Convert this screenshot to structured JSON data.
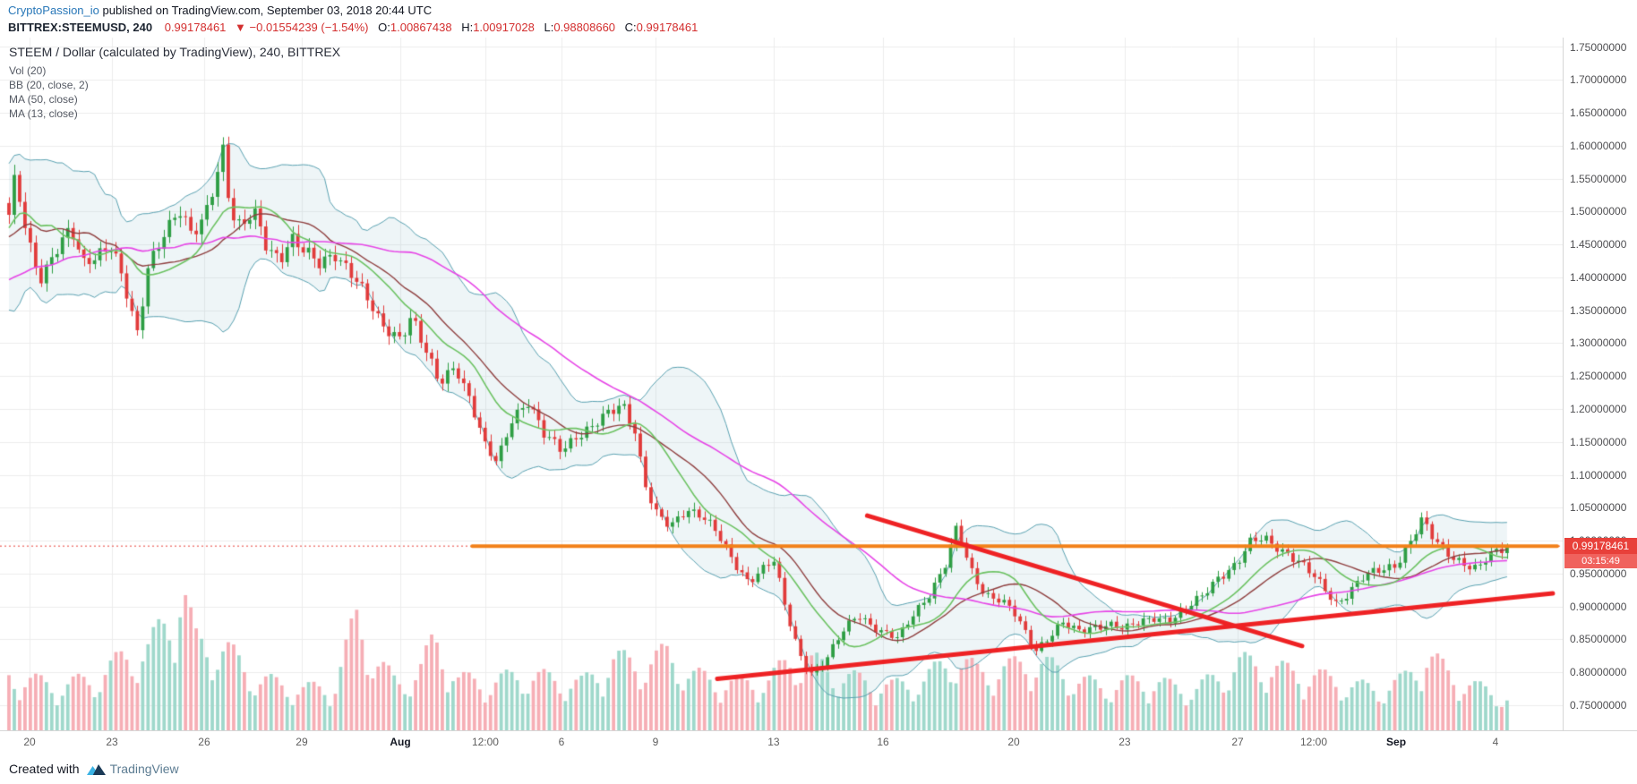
{
  "header": {
    "author": "CryptoPassion_io",
    "published": " published on TradingView.com, September 03, 2018 20:44 UTC"
  },
  "symbol_bar": {
    "symbol": "BITTREX:STEEMUSD, 240",
    "last": "0.99178461",
    "change": "▼ −0.01554239 (−1.54%)",
    "o_label": "O:",
    "o": "1.00867438",
    "h_label": "H:",
    "h": "1.00917028",
    "l_label": "L:",
    "l": "0.98808660",
    "c_label": "C:",
    "c": "0.99178461"
  },
  "legend": {
    "title": "STEEM / Dollar (calculated by TradingView), 240, BITTREX",
    "vol": "Vol (20)",
    "bb": "BB (20, close, 2)",
    "ma50": "MA (50, close)",
    "ma13": "MA (13, close)"
  },
  "price_axis": {
    "ticks": [
      "1.75000000",
      "1.70000000",
      "1.65000000",
      "1.60000000",
      "1.55000000",
      "1.50000000",
      "1.45000000",
      "1.40000000",
      "1.35000000",
      "1.30000000",
      "1.25000000",
      "1.20000000",
      "1.15000000",
      "1.10000000",
      "1.05000000",
      "1.00000000",
      "0.95000000",
      "0.90000000",
      "0.85000000",
      "0.80000000",
      "0.75000000"
    ],
    "last_price_label": "0.99178461",
    "countdown": "03:15:49"
  },
  "time_axis": {
    "ticks": [
      {
        "label": "20",
        "f": 0.0133,
        "month": false
      },
      {
        "label": "23",
        "f": 0.0665,
        "month": false
      },
      {
        "label": "26",
        "f": 0.126,
        "month": false
      },
      {
        "label": "29",
        "f": 0.189,
        "month": false
      },
      {
        "label": "Aug",
        "f": 0.2526,
        "month": true
      },
      {
        "label": "12:00",
        "f": 0.3075,
        "month": false
      },
      {
        "label": "6",
        "f": 0.3566,
        "month": false
      },
      {
        "label": "9",
        "f": 0.4173,
        "month": false
      },
      {
        "label": "13",
        "f": 0.4936,
        "month": false
      },
      {
        "label": "16",
        "f": 0.5642,
        "month": false
      },
      {
        "label": "20",
        "f": 0.6486,
        "month": false
      },
      {
        "label": "23",
        "f": 0.7202,
        "month": false
      },
      {
        "label": "27",
        "f": 0.7931,
        "month": false
      },
      {
        "label": "12:00",
        "f": 0.8422,
        "month": false
      },
      {
        "label": "Sep",
        "f": 0.8954,
        "month": true
      },
      {
        "label": "4",
        "f": 0.9595,
        "month": false
      }
    ]
  },
  "footer": {
    "created_with": "Created with",
    "brand": "TradingView"
  },
  "chart_data": {
    "type": "candlestick",
    "title": "STEEM / Dollar (calculated by TradingView), 240, BITTREX",
    "symbol": "STEEM/USD",
    "exchange": "BITTREX",
    "interval_minutes": 240,
    "price_range": [
      0.75,
      1.75
    ],
    "grid_step": 0.05,
    "legend_position": "top-left",
    "grid": true,
    "indicators": {
      "volume_ma": 20,
      "bollinger": {
        "period": 20,
        "source": "close",
        "stdev": 2
      },
      "ma": [
        {
          "period": 50,
          "source": "close"
        },
        {
          "period": 13,
          "source": "close"
        }
      ]
    },
    "last_candle": {
      "open": 1.00867438,
      "high": 1.00917028,
      "low": 0.9880866,
      "close": 0.99178461
    },
    "candle_count": 281,
    "last_frac": 0.967,
    "close_path_estimate": [
      [
        0.0,
        1.49
      ],
      [
        0.004,
        1.55
      ],
      [
        0.012,
        1.46
      ],
      [
        0.02,
        1.4
      ],
      [
        0.03,
        1.44
      ],
      [
        0.04,
        1.47
      ],
      [
        0.048,
        1.42
      ],
      [
        0.058,
        1.44
      ],
      [
        0.0665,
        1.45
      ],
      [
        0.075,
        1.38
      ],
      [
        0.083,
        1.31
      ],
      [
        0.09,
        1.42
      ],
      [
        0.1,
        1.47
      ],
      [
        0.11,
        1.5
      ],
      [
        0.118,
        1.46
      ],
      [
        0.126,
        1.49
      ],
      [
        0.133,
        1.55
      ],
      [
        0.138,
        1.6
      ],
      [
        0.143,
        1.5
      ],
      [
        0.15,
        1.47
      ],
      [
        0.158,
        1.5
      ],
      [
        0.166,
        1.45
      ],
      [
        0.175,
        1.43
      ],
      [
        0.182,
        1.46
      ],
      [
        0.189,
        1.44
      ],
      [
        0.2,
        1.42
      ],
      [
        0.21,
        1.44
      ],
      [
        0.22,
        1.41
      ],
      [
        0.23,
        1.37
      ],
      [
        0.24,
        1.33
      ],
      [
        0.2526,
        1.31
      ],
      [
        0.26,
        1.34
      ],
      [
        0.268,
        1.29
      ],
      [
        0.278,
        1.24
      ],
      [
        0.288,
        1.27
      ],
      [
        0.298,
        1.21
      ],
      [
        0.3075,
        1.14
      ],
      [
        0.315,
        1.12
      ],
      [
        0.325,
        1.19
      ],
      [
        0.335,
        1.21
      ],
      [
        0.345,
        1.16
      ],
      [
        0.3566,
        1.14
      ],
      [
        0.366,
        1.16
      ],
      [
        0.376,
        1.17
      ],
      [
        0.386,
        1.19
      ],
      [
        0.396,
        1.21
      ],
      [
        0.404,
        1.17
      ],
      [
        0.41,
        1.09
      ],
      [
        0.4173,
        1.04
      ],
      [
        0.427,
        1.02
      ],
      [
        0.437,
        1.05
      ],
      [
        0.447,
        1.04
      ],
      [
        0.457,
        1.01
      ],
      [
        0.467,
        0.97
      ],
      [
        0.477,
        0.94
      ],
      [
        0.4936,
        0.97
      ],
      [
        0.502,
        0.89
      ],
      [
        0.51,
        0.83
      ],
      [
        0.518,
        0.8
      ],
      [
        0.528,
        0.82
      ],
      [
        0.538,
        0.86
      ],
      [
        0.548,
        0.89
      ],
      [
        0.558,
        0.87
      ],
      [
        0.5642,
        0.86
      ],
      [
        0.574,
        0.85
      ],
      [
        0.584,
        0.89
      ],
      [
        0.594,
        0.92
      ],
      [
        0.604,
        0.96
      ],
      [
        0.612,
        1.02
      ],
      [
        0.62,
        0.96
      ],
      [
        0.63,
        0.92
      ],
      [
        0.64,
        0.91
      ],
      [
        0.6486,
        0.89
      ],
      [
        0.656,
        0.86
      ],
      [
        0.663,
        0.835
      ],
      [
        0.671,
        0.855
      ],
      [
        0.68,
        0.875
      ],
      [
        0.69,
        0.86
      ],
      [
        0.7,
        0.87
      ],
      [
        0.71,
        0.875
      ],
      [
        0.7202,
        0.865
      ],
      [
        0.73,
        0.875
      ],
      [
        0.74,
        0.885
      ],
      [
        0.75,
        0.88
      ],
      [
        0.76,
        0.895
      ],
      [
        0.77,
        0.915
      ],
      [
        0.78,
        0.945
      ],
      [
        0.7931,
        0.965
      ],
      [
        0.801,
        0.995
      ],
      [
        0.81,
        1.005
      ],
      [
        0.82,
        0.99
      ],
      [
        0.831,
        0.97
      ],
      [
        0.8422,
        0.945
      ],
      [
        0.85,
        0.925
      ],
      [
        0.857,
        0.905
      ],
      [
        0.866,
        0.925
      ],
      [
        0.875,
        0.945
      ],
      [
        0.885,
        0.955
      ],
      [
        0.8954,
        0.965
      ],
      [
        0.905,
        1.0
      ],
      [
        0.912,
        1.03
      ],
      [
        0.92,
        1.0
      ],
      [
        0.93,
        0.98
      ],
      [
        0.94,
        0.965
      ],
      [
        0.948,
        0.955
      ],
      [
        0.955,
        0.975
      ],
      [
        0.962,
        0.985
      ],
      [
        0.967,
        0.992
      ]
    ],
    "volume_profile_estimate": [
      [
        0.0,
        0.38
      ],
      [
        0.03,
        0.3
      ],
      [
        0.055,
        0.35
      ],
      [
        0.075,
        0.5
      ],
      [
        0.09,
        0.55
      ],
      [
        0.105,
        0.8
      ],
      [
        0.112,
        1.0
      ],
      [
        0.12,
        0.6
      ],
      [
        0.14,
        0.55
      ],
      [
        0.16,
        0.35
      ],
      [
        0.19,
        0.28
      ],
      [
        0.21,
        0.3
      ],
      [
        0.225,
        0.78
      ],
      [
        0.235,
        0.5
      ],
      [
        0.25,
        0.32
      ],
      [
        0.265,
        0.4
      ],
      [
        0.275,
        0.62
      ],
      [
        0.29,
        0.35
      ],
      [
        0.31,
        0.32
      ],
      [
        0.33,
        0.38
      ],
      [
        0.35,
        0.35
      ],
      [
        0.37,
        0.32
      ],
      [
        0.39,
        0.48
      ],
      [
        0.41,
        0.45
      ],
      [
        0.425,
        0.52
      ],
      [
        0.44,
        0.38
      ],
      [
        0.455,
        0.34
      ],
      [
        0.47,
        0.32
      ],
      [
        0.49,
        0.34
      ],
      [
        0.505,
        0.48
      ],
      [
        0.52,
        0.46
      ],
      [
        0.535,
        0.38
      ],
      [
        0.55,
        0.34
      ],
      [
        0.57,
        0.3
      ],
      [
        0.59,
        0.34
      ],
      [
        0.61,
        0.5
      ],
      [
        0.625,
        0.4
      ],
      [
        0.645,
        0.42
      ],
      [
        0.66,
        0.48
      ],
      [
        0.675,
        0.42
      ],
      [
        0.69,
        0.34
      ],
      [
        0.705,
        0.3
      ],
      [
        0.72,
        0.32
      ],
      [
        0.735,
        0.34
      ],
      [
        0.75,
        0.3
      ],
      [
        0.765,
        0.28
      ],
      [
        0.78,
        0.36
      ],
      [
        0.795,
        0.46
      ],
      [
        0.81,
        0.44
      ],
      [
        0.825,
        0.4
      ],
      [
        0.84,
        0.38
      ],
      [
        0.855,
        0.34
      ],
      [
        0.87,
        0.3
      ],
      [
        0.885,
        0.28
      ],
      [
        0.9,
        0.34
      ],
      [
        0.915,
        0.52
      ],
      [
        0.93,
        0.38
      ],
      [
        0.945,
        0.3
      ],
      [
        0.958,
        0.26
      ],
      [
        0.967,
        0.22
      ]
    ],
    "drawings": {
      "last_price_line": {
        "price": 0.99178461,
        "style": "dotted",
        "color": "#e8403a"
      },
      "horizontal_ray": {
        "price": 0.99178461,
        "from": 0.299,
        "color": "#f28018",
        "width": 4
      },
      "trendline_down": {
        "x1": 0.554,
        "p1": 1.038,
        "x2": 0.8347,
        "p2": 0.84,
        "color": "#ee2224",
        "width": 5
      },
      "trendline_up": {
        "x1": 0.4572,
        "p1": 0.79,
        "x2": 0.9965,
        "p2": 0.92,
        "color": "#ee2224",
        "width": 5
      }
    },
    "colors": {
      "up": "#2e9e44",
      "down": "#e13b3b",
      "vol_up": "#9fd8cb",
      "vol_down": "#f6aeb5",
      "bb_band": "#58a0b0",
      "bb_fill": "rgba(88,160,176,0.10)",
      "bb_basis": "#8f3f3f",
      "ma50": "#e645e6",
      "ma13": "#6cc262",
      "grid": "#ececec",
      "accent_orange": "#f28018",
      "accent_red": "#ee2224"
    }
  }
}
